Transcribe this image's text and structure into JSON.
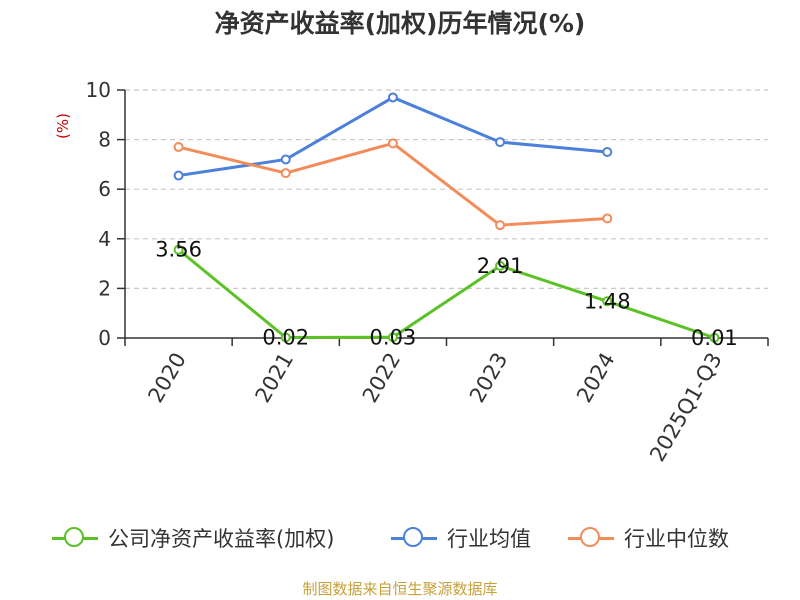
{
  "chart_data": {
    "type": "line",
    "title": "净资产收益率(加权)历年情况(%)",
    "ylabel": "(%)",
    "xlabel": "",
    "categories": [
      "2020",
      "2021",
      "2022",
      "2023",
      "2024",
      "2025Q1-Q3"
    ],
    "ylim": [
      0,
      10
    ],
    "yticks": [
      0,
      2,
      4,
      6,
      8,
      10
    ],
    "grid": true,
    "legend_position": "bottom",
    "series": [
      {
        "name": "公司净资产收益率(加权)",
        "color": "#5cc126",
        "values": [
          3.56,
          0.02,
          0.03,
          2.91,
          1.48,
          0.01
        ],
        "labels": [
          "3.56",
          "0.02",
          "0.03",
          "2.91",
          "1.48",
          "0.01"
        ]
      },
      {
        "name": "行业均值",
        "color": "#4c80db",
        "values": [
          6.55,
          7.2,
          9.7,
          7.9,
          7.5,
          null
        ],
        "labels": []
      },
      {
        "name": "行业中位数",
        "color": "#f48c5a",
        "values": [
          7.7,
          6.65,
          7.85,
          4.55,
          4.82,
          null
        ],
        "labels": []
      }
    ]
  },
  "source": "制图数据来自恒生聚源数据库"
}
